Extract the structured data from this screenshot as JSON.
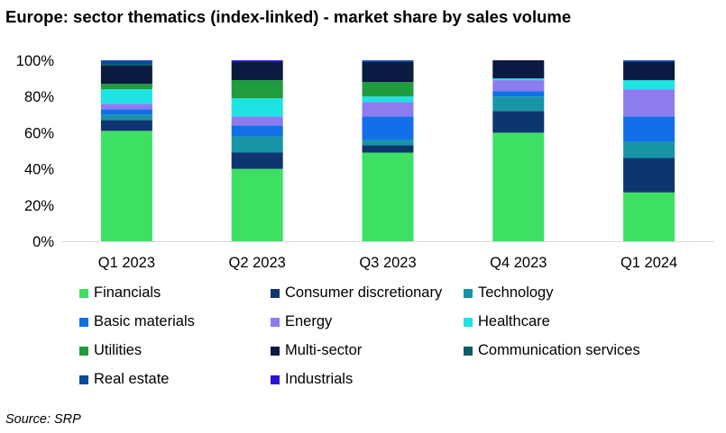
{
  "title": "Europe: sector thematics (index-linked) - market share by sales volume",
  "source": "Source: SRP",
  "chart_data": {
    "type": "bar",
    "stacked": true,
    "categories": [
      "Q1 2023",
      "Q2 2023",
      "Q3 2023",
      "Q4 2023",
      "Q1 2024"
    ],
    "y_ticks": [
      "0%",
      "20%",
      "40%",
      "60%",
      "80%",
      "100%"
    ],
    "ylim": [
      0,
      100
    ],
    "grid": false,
    "legend_position": "bottom",
    "series": [
      {
        "name": "Financials",
        "color": "#3ee064",
        "values": [
          61,
          40,
          49,
          60,
          27
        ]
      },
      {
        "name": "Consumer discretionary",
        "color": "#0f3570",
        "values": [
          6,
          9,
          4,
          12,
          19
        ]
      },
      {
        "name": "Technology",
        "color": "#1795a6",
        "values": [
          3,
          9,
          3,
          8,
          9
        ]
      },
      {
        "name": "Basic materials",
        "color": "#1170e8",
        "values": [
          3,
          6,
          13,
          3,
          14
        ]
      },
      {
        "name": "Energy",
        "color": "#8c7cf0",
        "values": [
          3,
          5,
          8,
          6,
          15
        ]
      },
      {
        "name": "Healthcare",
        "color": "#1ee3e3",
        "values": [
          8,
          10,
          3,
          1,
          5
        ]
      },
      {
        "name": "Utilities",
        "color": "#1e9c3e",
        "values": [
          3,
          10,
          8,
          0,
          0
        ]
      },
      {
        "name": "Multi-sector",
        "color": "#0a1a40",
        "values": [
          10,
          10,
          11,
          10,
          10
        ]
      },
      {
        "name": "Communication services",
        "color": "#0d5c68",
        "values": [
          1,
          0,
          0,
          0,
          0
        ]
      },
      {
        "name": "Real estate",
        "color": "#0d4a9e",
        "values": [
          2,
          0,
          1,
          0,
          1
        ]
      },
      {
        "name": "Industrials",
        "color": "#2a14d6",
        "values": [
          0,
          1,
          0,
          0,
          0
        ]
      }
    ]
  }
}
